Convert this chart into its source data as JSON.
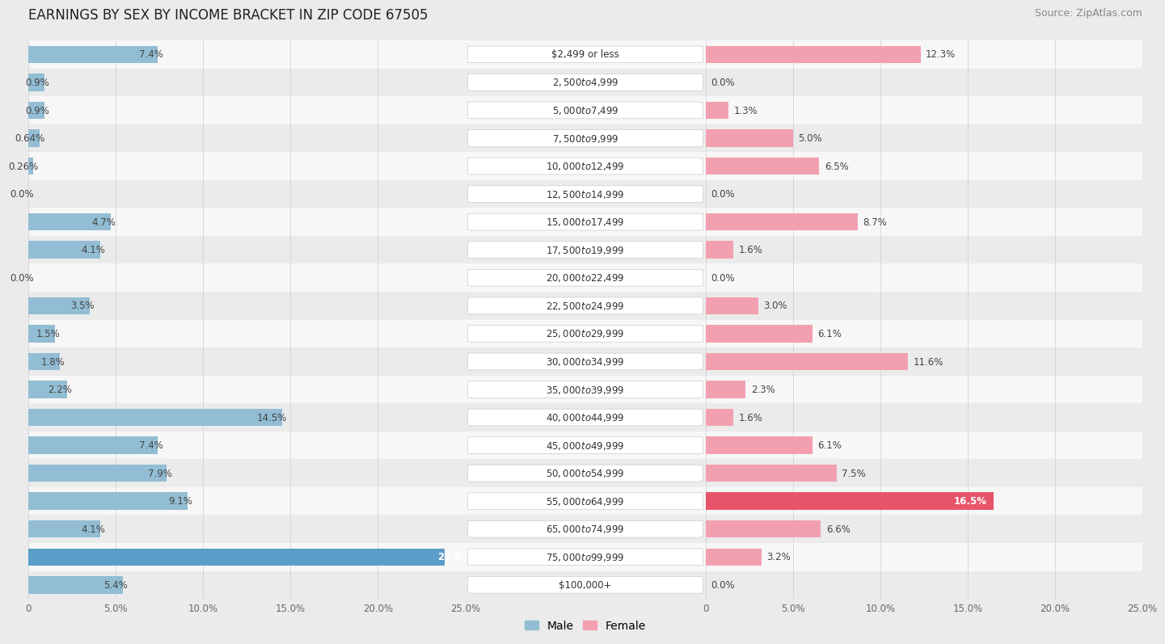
{
  "title": "EARNINGS BY SEX BY INCOME BRACKET IN ZIP CODE 67505",
  "source": "Source: ZipAtlas.com",
  "categories": [
    "$2,499 or less",
    "$2,500 to $4,999",
    "$5,000 to $7,499",
    "$7,500 to $9,999",
    "$10,000 to $12,499",
    "$12,500 to $14,999",
    "$15,000 to $17,499",
    "$17,500 to $19,999",
    "$20,000 to $22,499",
    "$22,500 to $24,999",
    "$25,000 to $29,999",
    "$30,000 to $34,999",
    "$35,000 to $39,999",
    "$40,000 to $44,999",
    "$45,000 to $49,999",
    "$50,000 to $54,999",
    "$55,000 to $64,999",
    "$65,000 to $74,999",
    "$75,000 to $99,999",
    "$100,000+"
  ],
  "male": [
    7.4,
    0.9,
    0.9,
    0.64,
    0.26,
    0.0,
    4.7,
    4.1,
    0.0,
    3.5,
    1.5,
    1.8,
    2.2,
    14.5,
    7.4,
    7.9,
    9.1,
    4.1,
    23.8,
    5.4
  ],
  "female": [
    12.3,
    0.0,
    1.3,
    5.0,
    6.5,
    0.0,
    8.7,
    1.6,
    0.0,
    3.0,
    6.1,
    11.6,
    2.3,
    1.6,
    6.1,
    7.5,
    16.5,
    6.6,
    3.2,
    0.0
  ],
  "male_color": "#92bdd4",
  "female_color": "#f2a0b0",
  "male_highlight_color": "#5b9ec9",
  "female_highlight_color": "#e8546a",
  "axis_max": 25.0,
  "bg_color": "#ebebeb",
  "row_light": "#f7f7f7",
  "row_dark": "#ebebeb",
  "label_pill_color": "#ffffff",
  "title_fontsize": 12,
  "source_fontsize": 9,
  "label_fontsize": 8.5,
  "category_fontsize": 8.5
}
